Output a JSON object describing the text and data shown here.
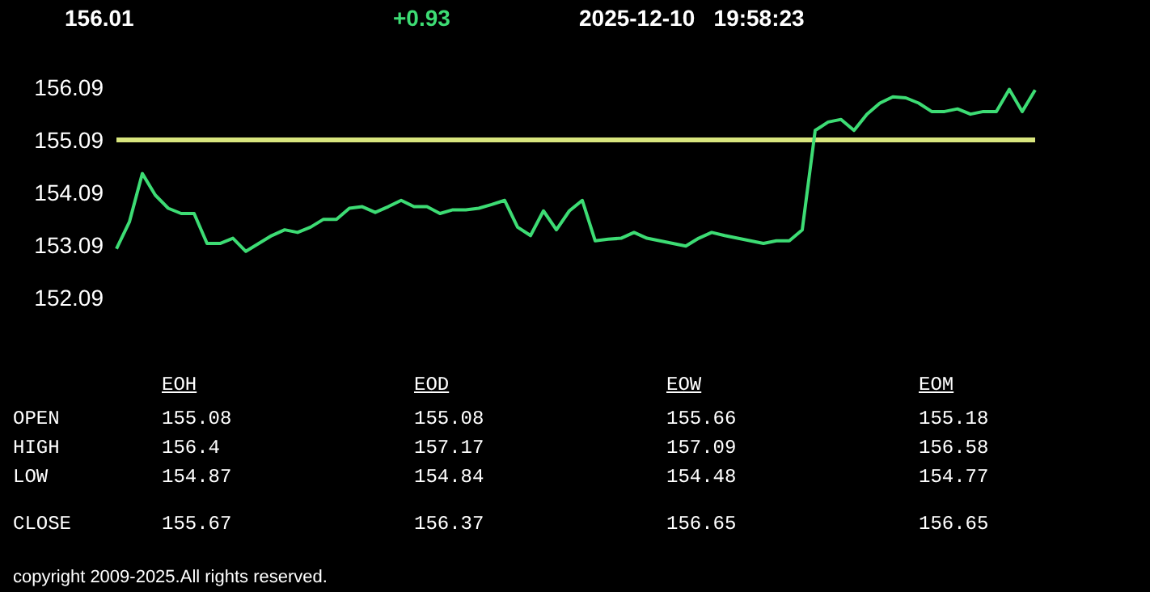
{
  "chart_data": [
    {
      "type": "line",
      "annotations": [
        "156.01",
        "+0.93",
        "2025-12-10   19:58:23",
        "copyright 2009-2025.All rights reserved."
      ],
      "categories": [
        null,
        null,
        null,
        null,
        null,
        null,
        null,
        null,
        null,
        null,
        null,
        null,
        null,
        null,
        null,
        null,
        null,
        null,
        null,
        null,
        null,
        null,
        null,
        null,
        null,
        null,
        null,
        null,
        null,
        null,
        null,
        null,
        null,
        null,
        null,
        null,
        null,
        null,
        null,
        null,
        null,
        null,
        null,
        null,
        null,
        null,
        null,
        null,
        null,
        null,
        null,
        null,
        null,
        null,
        null,
        null,
        null,
        null,
        null,
        null,
        null,
        null,
        null,
        null,
        null,
        null,
        null,
        null,
        null,
        null,
        null,
        null
      ],
      "series": [
        {
          "color": "#3ddc74",
          "values": [
            153.02,
            153.53,
            154.45,
            154.04,
            153.79,
            153.69,
            153.69,
            153.12,
            153.12,
            153.22,
            152.97,
            153.12,
            153.27,
            153.38,
            153.33,
            153.43,
            153.58,
            153.58,
            153.79,
            153.82,
            153.71,
            153.82,
            153.94,
            153.82,
            153.82,
            153.69,
            153.76,
            153.76,
            153.79,
            153.86,
            153.94,
            153.43,
            153.27,
            153.74,
            153.38,
            153.74,
            153.94,
            153.17,
            153.2,
            153.22,
            153.33,
            153.22,
            153.17,
            153.12,
            153.07,
            153.22,
            153.33,
            153.27,
            153.22,
            153.17,
            153.12,
            153.17,
            153.17,
            153.38,
            155.27,
            155.43,
            155.48,
            155.27,
            155.58,
            155.79,
            155.91,
            155.89,
            155.79,
            155.63,
            155.63,
            155.68,
            155.58,
            155.63,
            155.63,
            156.05,
            155.63,
            156.04
          ]
        }
      ],
      "ylim": [
        152.09,
        156.09
      ],
      "yticks": [
        152.09,
        153.09,
        154.09,
        155.09,
        156.09
      ],
      "ref_lines": [
        {
          "axis": "y",
          "value": 155.09,
          "color": "#d9e67e"
        }
      ],
      "grid": false,
      "legend": false,
      "tick_labels": "y"
    },
    {
      "type": "other",
      "annotations": [
        "EOH",
        "EOD",
        "EOW",
        "EOM",
        "OPEN",
        "155.08",
        "155.08",
        "155.66",
        "155.18",
        "HIGH",
        "156.4",
        "157.17",
        "157.09",
        "156.58",
        "LOW",
        "154.87",
        "154.84",
        "154.48",
        "154.77",
        "CLOSE",
        "155.67",
        "156.37",
        "156.65",
        "156.65"
      ]
    }
  ]
}
